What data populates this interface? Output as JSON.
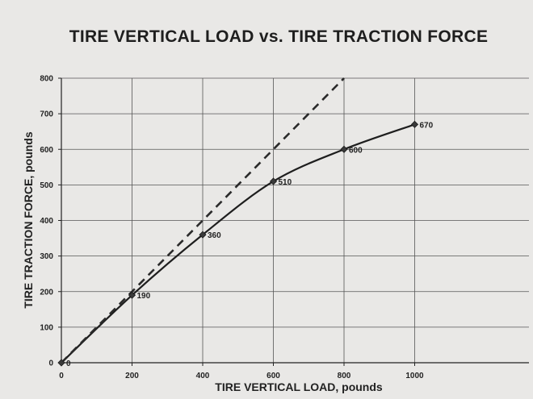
{
  "chart_data": {
    "type": "line",
    "title": "TIRE VERTICAL LOAD vs. TIRE TRACTION FORCE",
    "xlabel": "TIRE VERTICAL LOAD, pounds",
    "ylabel": "TIRE TRACTION FORCE, pounds",
    "xlim": [
      0,
      1000
    ],
    "ylim": [
      0,
      800
    ],
    "x_ticks": [
      0,
      200,
      400,
      600,
      800,
      1000
    ],
    "y_ticks": [
      0,
      100,
      200,
      300,
      400,
      500,
      600,
      700,
      800
    ],
    "grid": true,
    "legend": "none",
    "series": [
      {
        "style": "solid",
        "markers": "diamond",
        "x": [
          0,
          200,
          400,
          600,
          800,
          1000
        ],
        "y": [
          0,
          190,
          360,
          510,
          600,
          670
        ],
        "labels": [
          "0",
          "190",
          "360",
          "510",
          "600",
          "670"
        ]
      },
      {
        "style": "dashed",
        "x": [
          0,
          800
        ],
        "y": [
          0,
          800
        ]
      }
    ]
  }
}
